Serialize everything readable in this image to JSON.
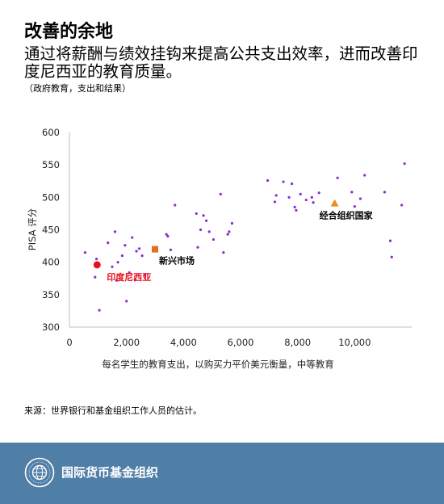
{
  "header": {
    "title": "改善的余地",
    "subtitle": "通过将薪酬与绩效挂钩来提高公共支出效率，进而改善印度尼西亚的教育质量。",
    "caption": "（政府教育，支出和结果）"
  },
  "chart_data": {
    "type": "scatter",
    "xlabel": "每名学生的教育支出，以购买力平价美元衡量，中等教育",
    "ylabel": "PISA 评分",
    "xlim": [
      0,
      12000
    ],
    "ylim": [
      300,
      600
    ],
    "x_ticks": [
      0,
      2000,
      4000,
      6000,
      8000,
      10000
    ],
    "x_tick_labels": [
      "0",
      "2,000",
      "4,000",
      "6,000",
      "8,000",
      "10,000"
    ],
    "y_ticks": [
      300,
      350,
      400,
      450,
      500,
      550,
      600
    ],
    "y_tick_labels": [
      "300",
      "350",
      "400",
      "450",
      "500",
      "550",
      "600"
    ],
    "grid": false,
    "series": [
      {
        "color": "#8b2ad1",
        "marker": "dot",
        "points": [
          [
            550,
            415
          ],
          [
            900,
            377
          ],
          [
            950,
            405
          ],
          [
            1050,
            326
          ],
          [
            1350,
            430
          ],
          [
            1500,
            393
          ],
          [
            1600,
            447
          ],
          [
            1650,
            372
          ],
          [
            1700,
            400
          ],
          [
            1850,
            410
          ],
          [
            1950,
            426
          ],
          [
            2000,
            340
          ],
          [
            2100,
            384
          ],
          [
            2200,
            438
          ],
          [
            2300,
            373
          ],
          [
            2350,
            417
          ],
          [
            2450,
            421
          ],
          [
            2550,
            410
          ],
          [
            2650,
            380
          ],
          [
            3000,
            420
          ],
          [
            3400,
            443
          ],
          [
            3450,
            440
          ],
          [
            3550,
            419
          ],
          [
            3700,
            488
          ],
          [
            4450,
            475
          ],
          [
            4500,
            423
          ],
          [
            4600,
            450
          ],
          [
            4700,
            472
          ],
          [
            4800,
            464
          ],
          [
            4900,
            447
          ],
          [
            5050,
            435
          ],
          [
            5300,
            505
          ],
          [
            5400,
            415
          ],
          [
            5550,
            443
          ],
          [
            5600,
            447
          ],
          [
            5700,
            460
          ],
          [
            6950,
            526
          ],
          [
            7200,
            493
          ],
          [
            7250,
            503
          ],
          [
            7500,
            524
          ],
          [
            7700,
            500
          ],
          [
            7800,
            521
          ],
          [
            7900,
            485
          ],
          [
            7950,
            480
          ],
          [
            8100,
            505
          ],
          [
            8300,
            496
          ],
          [
            8500,
            500
          ],
          [
            8550,
            492
          ],
          [
            8750,
            507
          ],
          [
            9400,
            530
          ],
          [
            9900,
            508
          ],
          [
            10000,
            486
          ],
          [
            10200,
            498
          ],
          [
            10350,
            534
          ],
          [
            11050,
            508
          ],
          [
            11250,
            433
          ],
          [
            11300,
            408
          ],
          [
            11750,
            552
          ],
          [
            11650,
            488
          ]
        ]
      },
      {
        "name": "印度尼西亚",
        "color": "#e8101b",
        "marker": "circle",
        "points": [
          [
            970,
            396
          ]
        ]
      },
      {
        "name": "新兴市场",
        "color": "#e0701e",
        "marker": "square",
        "points": [
          [
            3000,
            420
          ]
        ]
      },
      {
        "name": "经合组织国家",
        "color": "#ec8e27",
        "marker": "triangle",
        "points": [
          [
            9300,
            491
          ]
        ]
      }
    ]
  },
  "source": "来源：世界银行和基金组织工作人员的估计。",
  "footer": {
    "org_name": "国际货币基金组织",
    "bg_color": "#4f7ea6"
  }
}
